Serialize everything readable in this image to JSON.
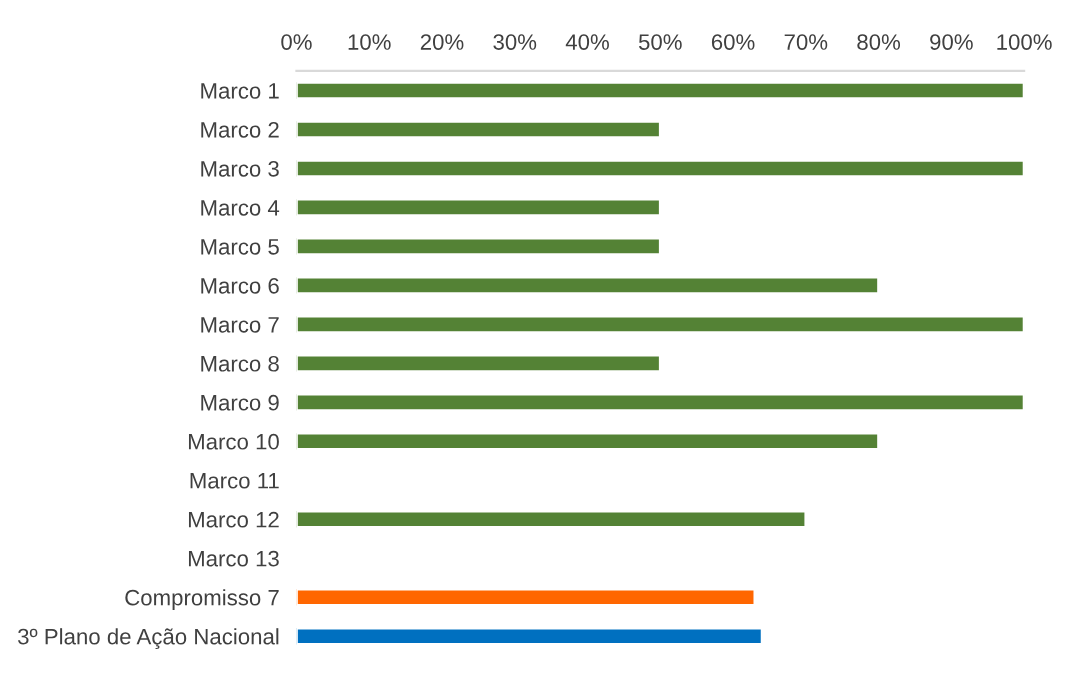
{
  "chart_data": {
    "type": "bar",
    "orientation": "horizontal",
    "categories": [
      "Marco 1",
      "Marco 2",
      "Marco 3",
      "Marco 4",
      "Marco 5",
      "Marco 6",
      "Marco 7",
      "Marco 8",
      "Marco 9",
      "Marco 10",
      "Marco 11",
      "Marco 12",
      "Marco 13",
      "Compromisso 7",
      "3º Plano de Ação Nacional"
    ],
    "values": [
      100,
      50,
      100,
      50,
      50,
      80,
      100,
      50,
      100,
      80,
      null,
      70,
      null,
      63,
      64
    ],
    "colors": [
      "#548235",
      "#548235",
      "#548235",
      "#548235",
      "#548235",
      "#548235",
      "#548235",
      "#548235",
      "#548235",
      "#548235",
      "#548235",
      "#548235",
      "#548235",
      "#ff6600",
      "#0070c0"
    ],
    "xlim": [
      0,
      100
    ],
    "xticks": [
      {
        "value": 0,
        "label": "0%"
      },
      {
        "value": 10,
        "label": "10%"
      },
      {
        "value": 20,
        "label": "20%"
      },
      {
        "value": 30,
        "label": "30%"
      },
      {
        "value": 40,
        "label": "40%"
      },
      {
        "value": 50,
        "label": "50%"
      },
      {
        "value": 60,
        "label": "60%"
      },
      {
        "value": 70,
        "label": "70%"
      },
      {
        "value": 80,
        "label": "80%"
      },
      {
        "value": 90,
        "label": "90%"
      },
      {
        "value": 100,
        "label": "100%"
      }
    ],
    "grid": false,
    "legend": false
  }
}
